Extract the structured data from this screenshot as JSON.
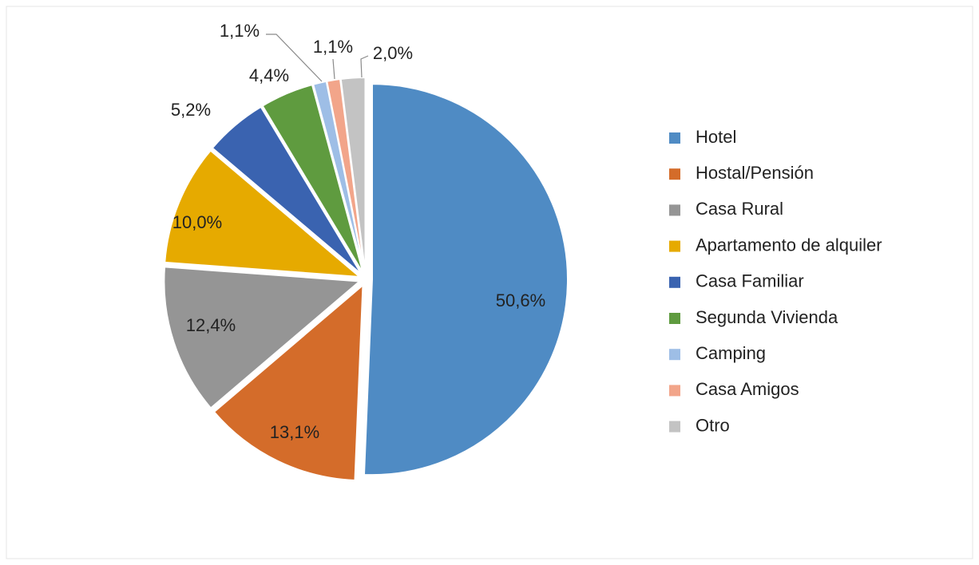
{
  "chart_data": {
    "type": "pie",
    "categories": [
      "Hotel",
      "Hostal/Pensión",
      "Casa Rural",
      "Apartamento de alquiler",
      "Casa Familiar",
      "Segunda Vivienda",
      "Camping",
      "Casa Amigos",
      "Otro"
    ],
    "values": [
      50.6,
      13.1,
      12.4,
      10.0,
      5.2,
      4.4,
      1.1,
      1.1,
      2.0
    ],
    "value_labels": [
      "50,6%",
      "13,1%",
      "12,4%",
      "10,0%",
      "5,2%",
      "4,4%",
      "1,1%",
      "1,1%",
      "2,0%"
    ],
    "colors": [
      "#4f8bc4",
      "#d46c2a",
      "#959595",
      "#e6aa00",
      "#3a63b0",
      "#5f9b3f",
      "#9ebee6",
      "#f2a58a",
      "#c3c3c3"
    ],
    "legend": "right"
  }
}
